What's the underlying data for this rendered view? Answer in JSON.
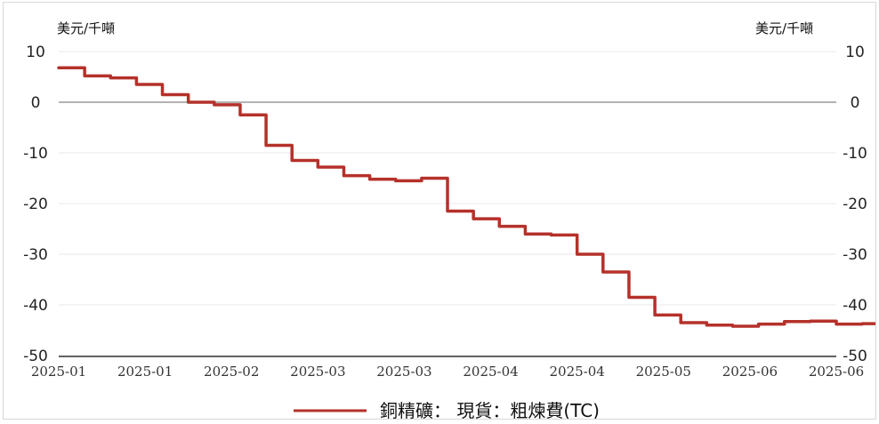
{
  "chart_data": {
    "type": "line",
    "title": "",
    "y_unit_left": "美元/千噸",
    "y_unit_right": "美元/千噸",
    "ylim": [
      -50,
      10
    ],
    "y_ticks": [
      10,
      0,
      -10,
      -20,
      -30,
      -40,
      -50
    ],
    "y_tick_labels": [
      "10",
      "0",
      "-10",
      "-20",
      "-30",
      "-40",
      "-50"
    ],
    "x_tick_labels": [
      "2025-01",
      "2025-01",
      "2025-02",
      "2025-03",
      "2025-03",
      "2025-04",
      "2025-04",
      "2025-05",
      "2025-06",
      "2025-06"
    ],
    "grid": true,
    "legend_position": "bottom-center",
    "colors": {
      "series": "#b5312a",
      "zero_line": "#9a9a9a",
      "grid": "#e8e8e8"
    },
    "series": [
      {
        "name": "銅精礦： 現貨：粗煉費(TC)",
        "x": [
          0,
          0.3,
          0.6,
          0.9,
          1.2,
          1.5,
          1.8,
          2.1,
          2.4,
          2.7,
          3.0,
          3.3,
          3.6,
          3.9,
          4.2,
          4.5,
          4.8,
          5.1,
          5.4,
          5.7,
          6.0,
          6.3,
          6.6,
          6.9,
          7.2,
          7.5,
          7.8,
          8.1,
          8.4,
          8.7,
          9.0,
          9.3,
          9.6,
          9.75
        ],
        "values": [
          6.8,
          5.2,
          4.8,
          3.5,
          1.5,
          0,
          -0.5,
          -2.5,
          -8.5,
          -11.5,
          -12.8,
          -14.5,
          -15.2,
          -15.5,
          -15.0,
          -21.5,
          -23.0,
          -24.5,
          -26.0,
          -26.2,
          -30.0,
          -33.5,
          -38.5,
          -42.0,
          -43.5,
          -44.0,
          -44.2,
          -43.8,
          -43.3,
          -43.2,
          -43.8,
          -43.7,
          -43.2,
          -43.6
        ]
      }
    ]
  }
}
